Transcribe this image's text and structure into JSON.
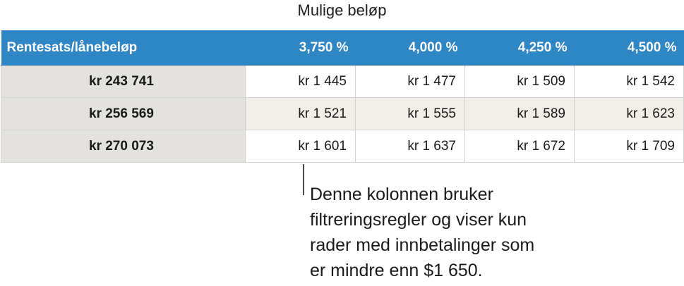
{
  "table": {
    "title": "Mulige beløp",
    "header": {
      "corner": "Rentesats/lånebeløp",
      "rates": [
        "3,750 %",
        "4,000 %",
        "4,250 %",
        "4,500 %"
      ]
    },
    "rows": [
      {
        "amount": "kr 243 741",
        "payments": [
          "kr 1 445",
          "kr 1 477",
          "kr 1 509",
          "kr 1 542"
        ]
      },
      {
        "amount": "kr 256 569",
        "payments": [
          "kr 1 521",
          "kr 1 555",
          "kr 1 589",
          "kr 1 623"
        ]
      },
      {
        "amount": "kr 270 073",
        "payments": [
          "kr 1 601",
          "kr 1 637",
          "kr 1 672",
          "kr 1 709"
        ]
      }
    ]
  },
  "callout": {
    "text": "Denne kolonnen bruker\nfiltreringsregler og viser kun\nrader med innbetalinger som\ner mindre enn $1 650."
  },
  "colors": {
    "header_background": "#2f86c4",
    "label_column_background": "#e4e2df",
    "alternate_row_background": "#f1eee8"
  }
}
